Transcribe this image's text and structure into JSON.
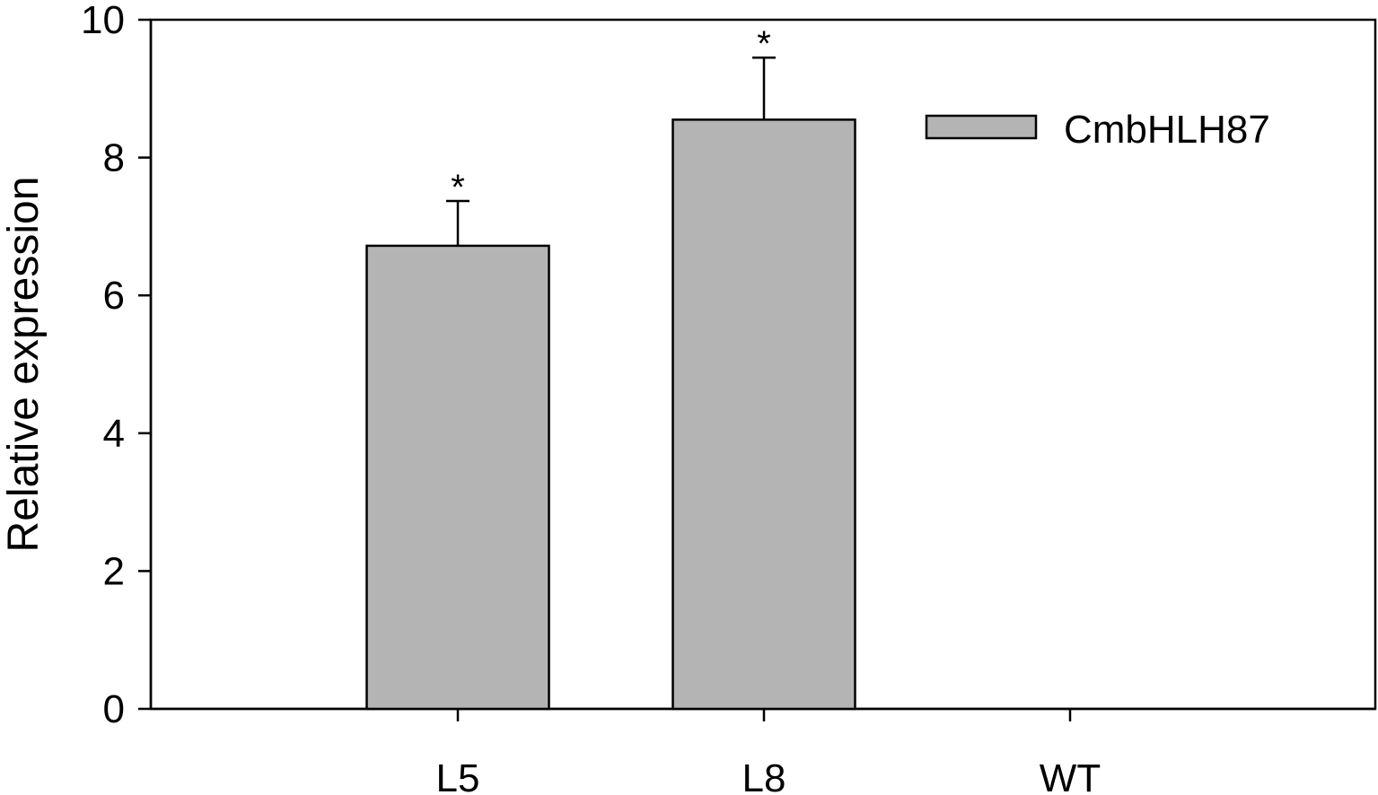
{
  "chart_data": {
    "type": "bar",
    "categories": [
      "L5",
      "L8",
      "WT"
    ],
    "series": [
      {
        "name": "CmbHLH87",
        "values": [
          6.72,
          8.55,
          0
        ],
        "error": [
          0.65,
          0.9,
          0
        ],
        "significance": [
          "*",
          "*",
          ""
        ]
      }
    ],
    "ylabel": "Relative expression",
    "xlabel": "",
    "ylim": [
      0,
      10
    ],
    "yticks": [
      0,
      2,
      4,
      6,
      8,
      10
    ],
    "legend_position": "top-right",
    "grid": false,
    "colors": {
      "bar_fill": "#b4b4b4",
      "stroke": "#000000"
    }
  }
}
